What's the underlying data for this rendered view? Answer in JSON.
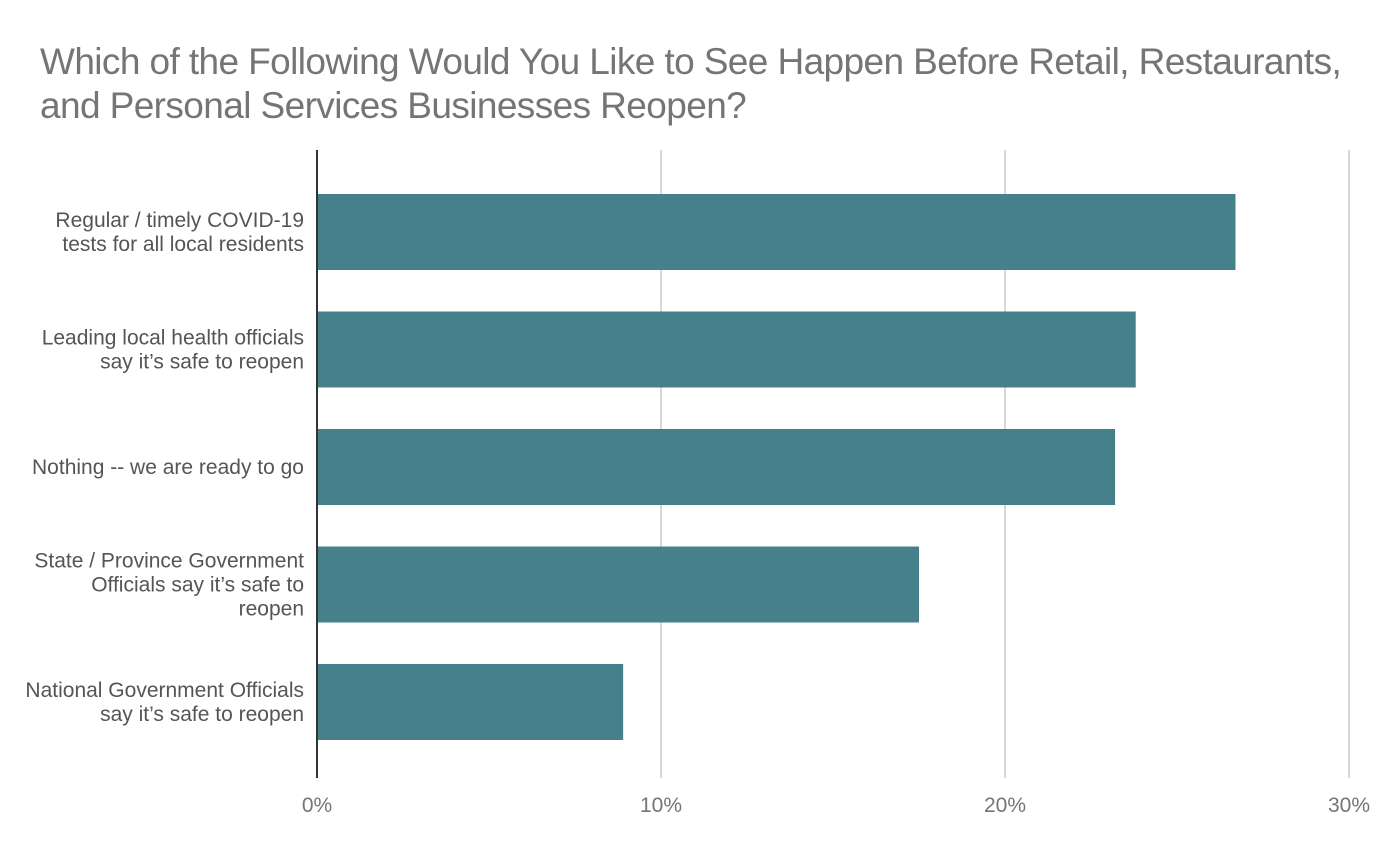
{
  "chart_data": {
    "type": "bar",
    "orientation": "horizontal",
    "title": "Which of the Following Would You Like to See Happen Before Retail, Restaurants, and Personal Services Businesses Reopen?",
    "categories": [
      [
        "Regular / timely COVID-19",
        "tests for all local residents"
      ],
      [
        "Leading local health officials",
        "say it’s safe to reopen"
      ],
      [
        "Nothing -- we are ready to go"
      ],
      [
        "State / Province Government",
        "Officials say it’s safe to",
        "reopen"
      ],
      [
        "National Government Officials",
        "say it’s safe to reopen"
      ]
    ],
    "values": [
      26.7,
      23.8,
      23.2,
      17.5,
      8.9
    ],
    "xlim": [
      0,
      30
    ],
    "xticks": [
      "0%",
      "10%",
      "20%",
      "30%"
    ],
    "xlabel": "",
    "ylabel": "",
    "grid": true,
    "legend": "none",
    "bar_color": "#45808b",
    "grid_color": "#cccccc",
    "axis_color": "#333333"
  }
}
